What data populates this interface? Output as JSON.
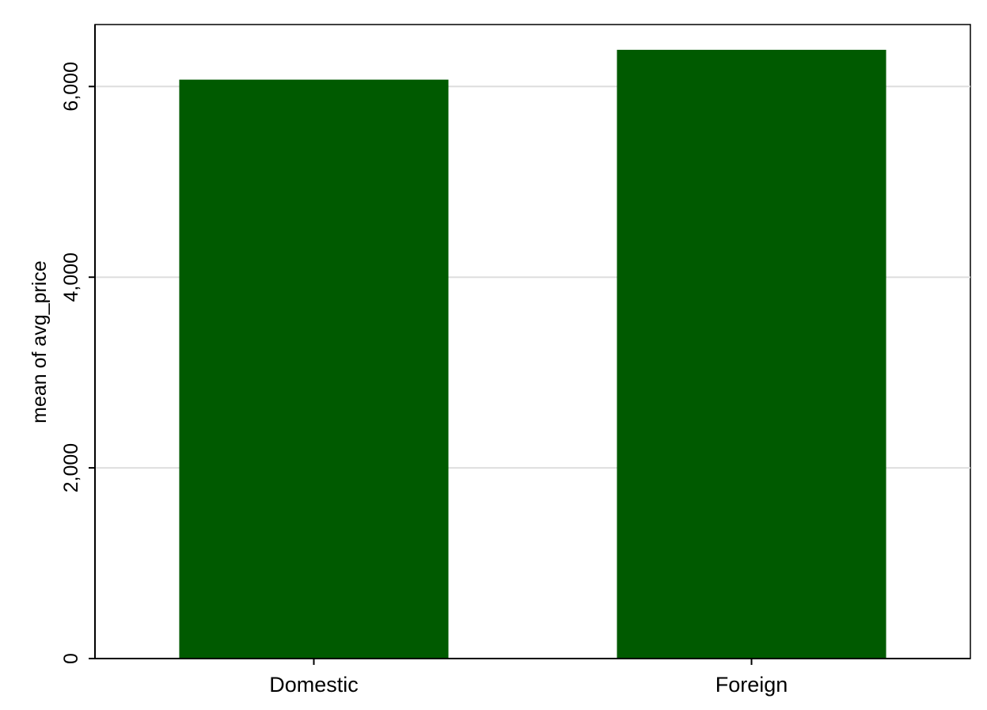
{
  "chart_data": {
    "type": "bar",
    "categories": [
      "Domestic",
      "Foreign"
    ],
    "values": [
      6072,
      6385
    ],
    "title": "",
    "xlabel": "",
    "ylabel": "mean of avg_price",
    "ylim": [
      0,
      6650
    ],
    "yticks": [
      0,
      2000,
      4000,
      6000
    ],
    "ytick_labels": [
      "0",
      "2,000",
      "4,000",
      "6,000"
    ],
    "grid": true,
    "bar_color": "#005a00",
    "grid_color": "#dedede"
  }
}
